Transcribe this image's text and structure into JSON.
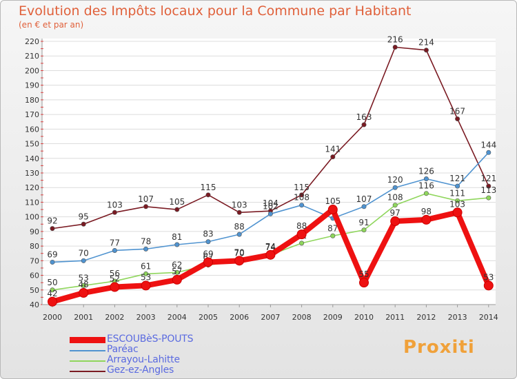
{
  "chart_data": {
    "type": "line",
    "title": "Evolution des Impôts locaux pour la Commune par Habitant",
    "subtitle": "(en € et par an)",
    "xlabel": "",
    "ylabel": "",
    "ylim": [
      40,
      220
    ],
    "yticks": [
      40,
      50,
      60,
      70,
      80,
      90,
      100,
      110,
      120,
      130,
      140,
      150,
      160,
      170,
      180,
      190,
      200,
      210,
      220
    ],
    "x": [
      "2000",
      "2001",
      "2002",
      "2003",
      "2004",
      "2005",
      "2006",
      "2007",
      "2008",
      "2009",
      "2010",
      "2011",
      "2012",
      "2013",
      "2014"
    ],
    "grid": true,
    "legend_position": "bottom-left",
    "series": [
      {
        "name": "Gez-ez-Angles",
        "color": "#7a1a22",
        "values": [
          92,
          95,
          103,
          107,
          105,
          115,
          103,
          104,
          115,
          141,
          163,
          216,
          214,
          167,
          121
        ],
        "labels": [
          "92",
          "95",
          "103",
          "107",
          "105",
          "115",
          "103",
          "104",
          "115",
          "141",
          "163",
          "216",
          "214",
          "167",
          "121"
        ]
      },
      {
        "name": "Paréac",
        "color": "#4f93d0",
        "values": [
          69,
          70,
          77,
          78,
          81,
          83,
          88,
          102,
          108,
          99,
          107,
          120,
          126,
          121,
          144
        ],
        "labels": [
          "69",
          "70",
          "77",
          "78",
          "81",
          "83",
          "88",
          "102",
          "108",
          "99",
          "107",
          "120",
          "126",
          "121",
          "144"
        ]
      },
      {
        "name": "Arrayou-Lahitte",
        "color": "#8fd65c",
        "values": [
          50,
          53,
          56,
          61,
          62,
          67,
          70,
          74,
          82,
          87,
          91,
          108,
          116,
          111,
          113
        ],
        "labels": [
          "50",
          "53",
          "56",
          "61",
          "62",
          "67",
          "70",
          "74",
          "82",
          "87",
          "91",
          "108",
          "116",
          "111",
          "113"
        ]
      },
      {
        "name": "ESCOUBèS-POUTS",
        "color": "#ee1111",
        "values": [
          42,
          48,
          52,
          53,
          57,
          69,
          70,
          74,
          88,
          105,
          55,
          97,
          98,
          103,
          53
        ],
        "labels": [
          "42",
          "48",
          "52",
          "53",
          "57",
          "69",
          "70",
          "74",
          "88",
          "105",
          "55",
          "97",
          "98",
          "103",
          "53"
        ]
      }
    ],
    "legend": [
      {
        "name": "ESCOUBèS-POUTS",
        "color": "#ee1111",
        "thickness": 9
      },
      {
        "name": "Paréac",
        "color": "#4f93d0",
        "thickness": 2
      },
      {
        "name": "Arrayou-Lahitte",
        "color": "#8fd65c",
        "thickness": 2
      },
      {
        "name": "Gez-ez-Angles",
        "color": "#7a1a22",
        "thickness": 2
      }
    ]
  },
  "logo": {
    "text": "Proxiti"
  }
}
